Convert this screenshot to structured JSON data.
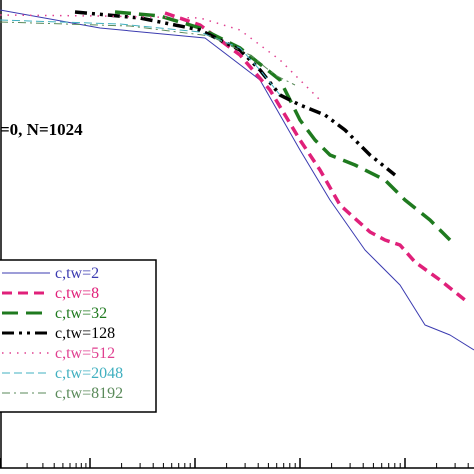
{
  "chart_data": {
    "type": "line",
    "title": "",
    "xlabel": "",
    "ylabel": "",
    "x_scale": "log",
    "grid": false,
    "legend_position": "bottom-left",
    "annotation": "=0,   N=1024",
    "series": [
      {
        "name": "c,tw=2",
        "color": "#3b3bb0",
        "dash": "solid",
        "points": [
          [
            0,
            10
          ],
          [
            100,
            28
          ],
          [
            205,
            38
          ],
          [
            260,
            80
          ],
          [
            300,
            150
          ],
          [
            330,
            200
          ],
          [
            365,
            250
          ],
          [
            400,
            285
          ],
          [
            425,
            325
          ],
          [
            450,
            335
          ],
          [
            474,
            350
          ]
        ]
      },
      {
        "name": "c,tw=8",
        "color": "#e0207a",
        "dash": "pink-dash",
        "points": [
          [
            165,
            13
          ],
          [
            200,
            25
          ],
          [
            240,
            55
          ],
          [
            270,
            90
          ],
          [
            300,
            140
          ],
          [
            320,
            170
          ],
          [
            340,
            205
          ],
          [
            370,
            232
          ],
          [
            385,
            240
          ],
          [
            400,
            245
          ],
          [
            415,
            262
          ],
          [
            440,
            280
          ],
          [
            465,
            300
          ]
        ]
      },
      {
        "name": "c,tw=32",
        "color": "#1f7a1f",
        "dash": "green-dash",
        "points": [
          [
            115,
            12
          ],
          [
            160,
            16
          ],
          [
            200,
            28
          ],
          [
            240,
            48
          ],
          [
            280,
            80
          ],
          [
            300,
            120
          ],
          [
            315,
            140
          ],
          [
            330,
            155
          ],
          [
            355,
            165
          ],
          [
            385,
            180
          ],
          [
            405,
            200
          ],
          [
            430,
            220
          ],
          [
            450,
            240
          ]
        ]
      },
      {
        "name": "c,tw=128",
        "color": "#000000",
        "dash": "dashdotdot",
        "points": [
          [
            75,
            12
          ],
          [
            140,
            18
          ],
          [
            200,
            30
          ],
          [
            240,
            50
          ],
          [
            260,
            70
          ],
          [
            280,
            95
          ],
          [
            300,
            105
          ],
          [
            325,
            115
          ],
          [
            345,
            130
          ],
          [
            370,
            155
          ],
          [
            395,
            175
          ]
        ]
      },
      {
        "name": "c,tw=512",
        "color": "#e04090",
        "dash": "dots",
        "points": [
          [
            0,
            15
          ],
          [
            100,
            16
          ],
          [
            200,
            18
          ],
          [
            240,
            30
          ],
          [
            260,
            45
          ],
          [
            280,
            60
          ],
          [
            300,
            80
          ],
          [
            320,
            100
          ]
        ]
      },
      {
        "name": "c,tw=2048",
        "color": "#40b0c0",
        "dash": "light-dash",
        "points": [
          [
            0,
            20
          ],
          [
            120,
            24
          ],
          [
            200,
            32
          ],
          [
            240,
            48
          ],
          [
            260,
            70
          ],
          [
            280,
            95
          ]
        ]
      },
      {
        "name": "c,tw=8192",
        "color": "#5a8a5a",
        "dash": "dash-dot-light",
        "points": [
          [
            0,
            22
          ],
          [
            130,
            26
          ],
          [
            210,
            36
          ],
          [
            250,
            55
          ],
          [
            275,
            75
          ],
          [
            295,
            85
          ]
        ]
      }
    ]
  },
  "colors": {
    "axis": "#000000",
    "background": "#ffffff"
  }
}
